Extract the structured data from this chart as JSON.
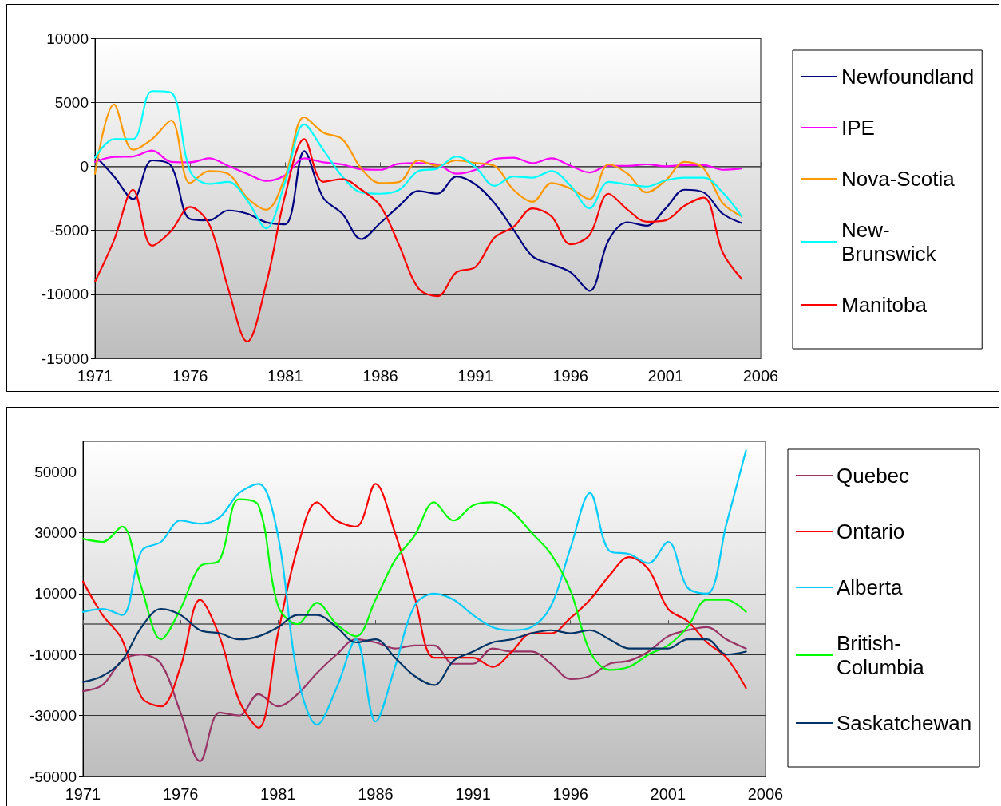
{
  "chart_data": [
    {
      "type": "line",
      "x": [
        1971,
        1972,
        1973,
        1974,
        1975,
        1976,
        1977,
        1978,
        1979,
        1980,
        1981,
        1982,
        1983,
        1984,
        1985,
        1986,
        1987,
        1988,
        1989,
        1990,
        1991,
        1992,
        1993,
        1994,
        1995,
        1996,
        1997,
        1998,
        1999,
        2000,
        2001,
        2002,
        2003,
        2004,
        2005
      ],
      "xlim": [
        1971,
        2006
      ],
      "xticks": [
        1971,
        1976,
        1981,
        1986,
        1991,
        1996,
        2001,
        2006
      ],
      "ylim": [
        -15000,
        10000
      ],
      "yticks": [
        -15000,
        -10000,
        -5000,
        0,
        5000,
        10000
      ],
      "grid": "y",
      "legend": "right",
      "marker": "none",
      "series": [
        {
          "name": "Newfoundland",
          "color": "#000080",
          "values": [
            830,
            -790,
            -2560,
            460,
            40,
            -4120,
            -4220,
            -3450,
            -3700,
            -4370,
            -4530,
            1190,
            -2450,
            -3700,
            -5680,
            -4430,
            -3080,
            -1930,
            -2140,
            -790,
            -1410,
            -2870,
            -4950,
            -7030,
            -7650,
            -8280,
            -9730,
            -5780,
            -4370,
            -4640,
            -3290,
            -1830,
            -2040,
            -3700,
            -4430
          ]
        },
        {
          "name": "IPE",
          "color": "#ff00ff",
          "values": [
            350,
            730,
            770,
            1230,
            350,
            310,
            620,
            40,
            -580,
            -1140,
            -690,
            620,
            310,
            150,
            -230,
            -270,
            210,
            250,
            150,
            -580,
            -270,
            560,
            670,
            250,
            620,
            40,
            -480,
            40,
            40,
            150,
            0,
            100,
            100,
            -270,
            -170
          ]
        },
        {
          "name": "Nova-Scotia",
          "color": "#ff9900",
          "values": [
            -580,
            4830,
            1290,
            2120,
            3580,
            -1310,
            -370,
            -580,
            -2450,
            -3390,
            -790,
            3830,
            2640,
            2120,
            -170,
            -1310,
            -1210,
            460,
            40,
            460,
            250,
            40,
            -1830,
            -2770,
            -1310,
            -1730,
            -2560,
            150,
            -580,
            -2040,
            -1100,
            350,
            -170,
            -2870,
            -3910
          ]
        },
        {
          "name": "New-Brunswick",
          "color": "#00ffff",
          "values": [
            670,
            2120,
            2120,
            5870,
            5760,
            -370,
            -1370,
            -1210,
            -2660,
            -4850,
            -1210,
            3270,
            1290,
            -790,
            -2040,
            -2140,
            -1830,
            -370,
            -170,
            770,
            -60,
            -1520,
            -790,
            -890,
            -370,
            -1520,
            -3290,
            -1210,
            -1410,
            -1580,
            -1100,
            -890,
            -890,
            -2040,
            -3910
          ]
        },
        {
          "name": "Manitoba",
          "color": "#ff0000",
          "values": [
            -9010,
            -5780,
            -1830,
            -6200,
            -5050,
            -3180,
            -4530,
            -9530,
            -13690,
            -9210,
            -2250,
            2120,
            -1210,
            -1000,
            -1830,
            -3080,
            -6200,
            -9530,
            -10150,
            -8280,
            -7860,
            -5570,
            -4740,
            -3290,
            -3910,
            -6090,
            -5370,
            -2140,
            -3390,
            -4330,
            -4220,
            -3080,
            -2450,
            -6720,
            -8800
          ]
        }
      ]
    },
    {
      "type": "line",
      "x": [
        1971,
        1972,
        1973,
        1974,
        1975,
        1976,
        1977,
        1978,
        1979,
        1980,
        1981,
        1982,
        1983,
        1984,
        1985,
        1986,
        1987,
        1988,
        1989,
        1990,
        1991,
        1992,
        1993,
        1994,
        1995,
        1996,
        1997,
        1998,
        1999,
        2000,
        2001,
        2002,
        2003,
        2004,
        2005
      ],
      "xlim": [
        1971,
        2006
      ],
      "xticks": [
        1971,
        1976,
        1981,
        1986,
        1991,
        1996,
        2001,
        2006
      ],
      "ylim": [
        -50000,
        60000
      ],
      "yticks": [
        -50000,
        -30000,
        -10000,
        10000,
        30000,
        50000
      ],
      "grid": "y",
      "legend": "right",
      "marker": "none",
      "series": [
        {
          "name": "Quebec",
          "color": "#993366",
          "values": [
            -22000,
            -20000,
            -12000,
            -10000,
            -13000,
            -29000,
            -45000,
            -29000,
            -30000,
            -23000,
            -27000,
            -23000,
            -16000,
            -10000,
            -5000,
            -6000,
            -8000,
            -7000,
            -7000,
            -13000,
            -13000,
            -8000,
            -9000,
            -9000,
            -13000,
            -18000,
            -17000,
            -13000,
            -12000,
            -9000,
            -4000,
            -2000,
            -1000,
            -5000,
            -8000
          ]
        },
        {
          "name": "Ontario",
          "color": "#ff0000",
          "values": [
            14000,
            3000,
            -5000,
            -24000,
            -27000,
            -14000,
            8000,
            -4000,
            -25000,
            -34000,
            -3000,
            25000,
            40000,
            34000,
            32000,
            46000,
            30000,
            9000,
            -11000,
            -11000,
            -11000,
            -14000,
            -9000,
            -3000,
            -3000,
            2000,
            8000,
            16000,
            22000,
            18000,
            5000,
            1000,
            -6000,
            -11000,
            -21000
          ]
        },
        {
          "name": "Alberta",
          "color": "#00ccff",
          "values": [
            4000,
            5000,
            3000,
            24000,
            27000,
            34000,
            33000,
            35000,
            43000,
            46000,
            29000,
            -17000,
            -33000,
            -21000,
            -5000,
            -32000,
            -14000,
            6000,
            10000,
            8000,
            3000,
            -1000,
            -2000,
            -1000,
            6000,
            25000,
            43000,
            24000,
            23000,
            20000,
            27000,
            12000,
            10000,
            33000,
            57000
          ]
        },
        {
          "name": "British-Columbia",
          "color": "#00ff00",
          "values": [
            28000,
            27000,
            32000,
            12000,
            -5000,
            5000,
            19000,
            21000,
            41000,
            39000,
            6000,
            0,
            7000,
            0,
            -4000,
            8000,
            21000,
            29000,
            40000,
            34000,
            39000,
            40000,
            37000,
            30000,
            23000,
            11000,
            -9000,
            -15000,
            -14000,
            -10000,
            -7000,
            -1000,
            8000,
            8000,
            4000
          ]
        },
        {
          "name": "Saskatchewan",
          "color": "#003366",
          "values": [
            -19000,
            -17000,
            -12000,
            -1000,
            5000,
            3000,
            -2000,
            -3000,
            -5000,
            -4000,
            -1000,
            3000,
            3000,
            -1000,
            -6000,
            -5000,
            -11000,
            -17000,
            -20000,
            -12000,
            -9000,
            -6000,
            -5000,
            -3000,
            -2000,
            -3000,
            -2000,
            -5000,
            -8000,
            -8000,
            -8000,
            -5000,
            -5000,
            -10000,
            -9000
          ]
        }
      ]
    }
  ]
}
